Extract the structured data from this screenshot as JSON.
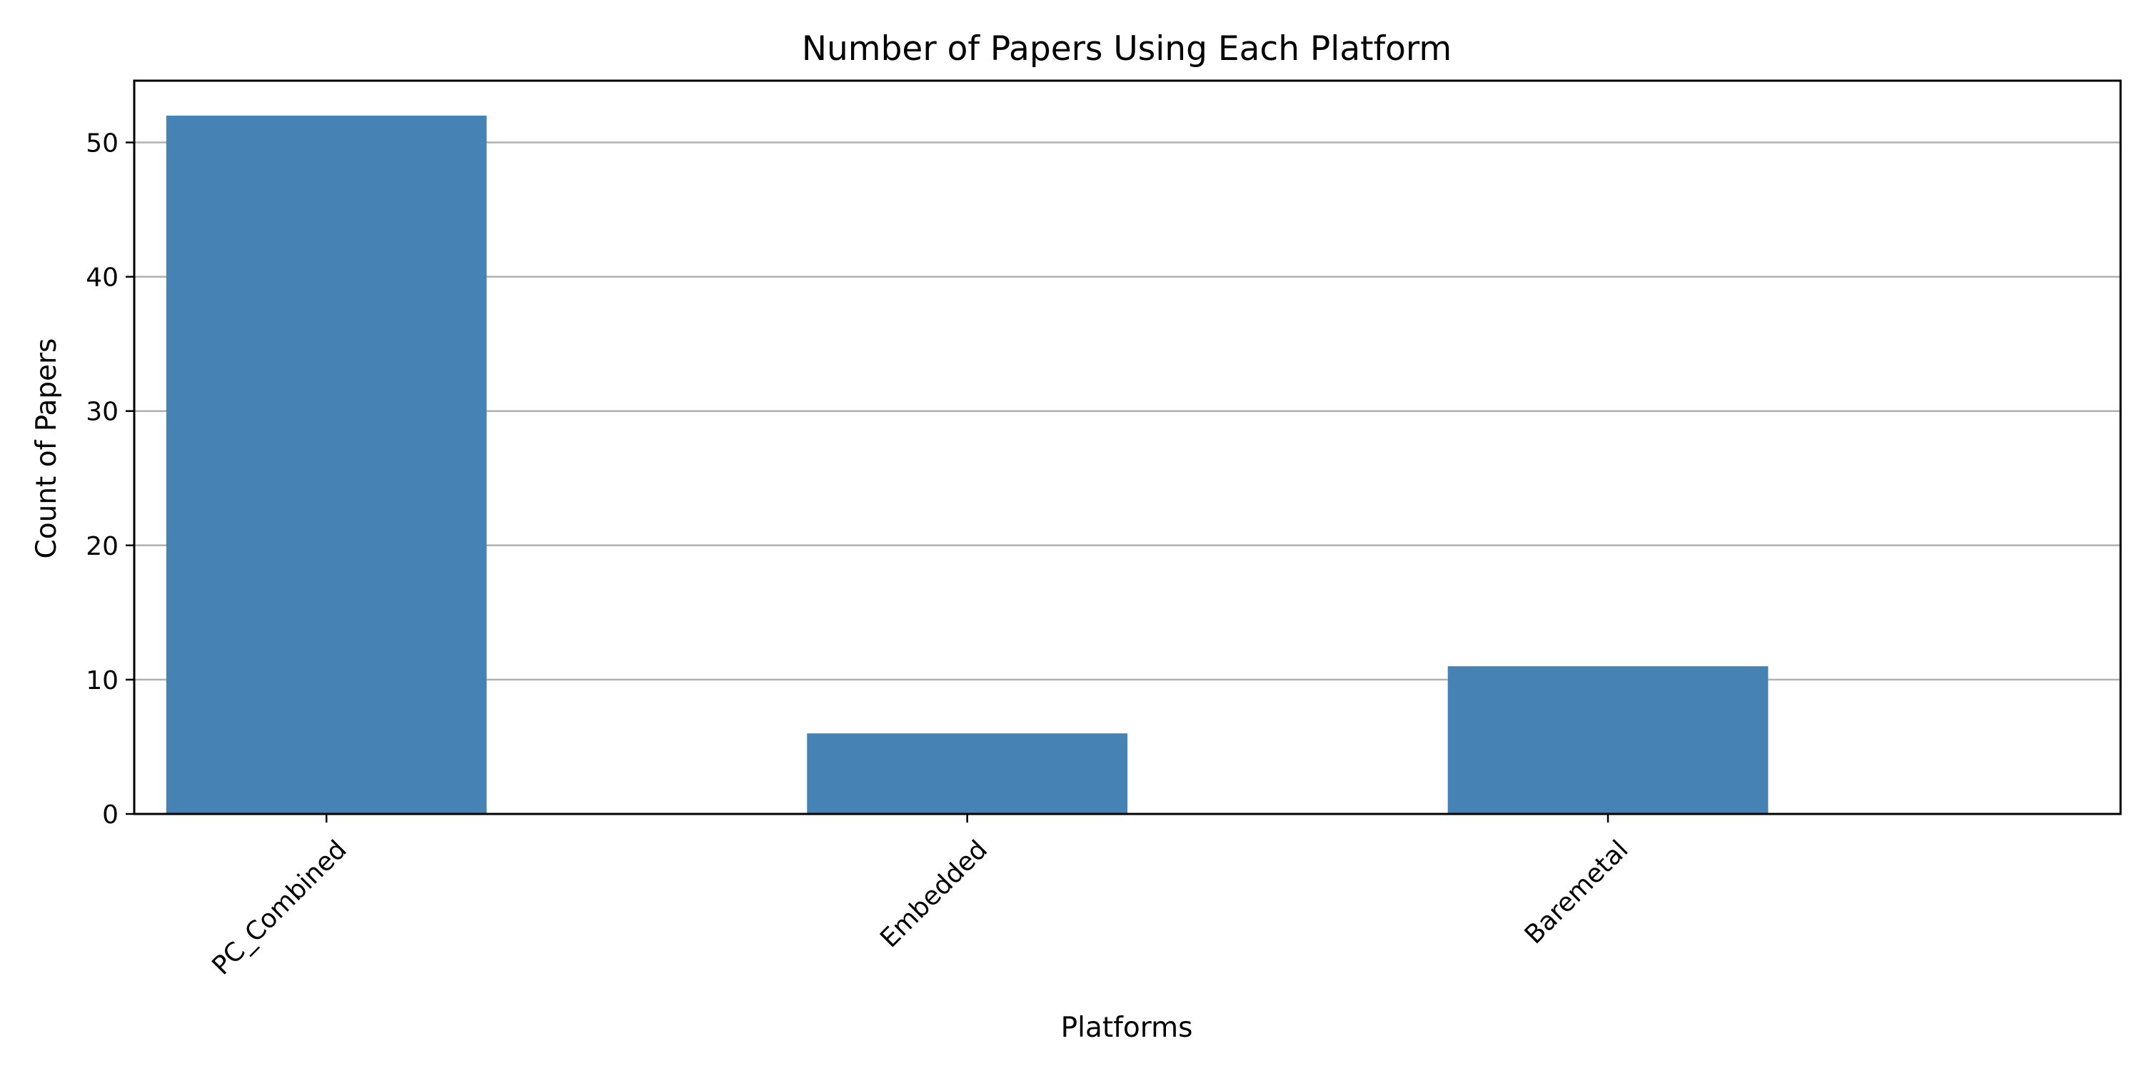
{
  "chart_data": {
    "type": "bar",
    "title": "Number of Papers Using Each Platform",
    "xlabel": "Platforms",
    "ylabel": "Count of Papers",
    "categories": [
      "PC_Combined",
      "Embedded",
      "Baremetal"
    ],
    "values": [
      52,
      6,
      11
    ],
    "ylim": [
      0,
      54.6
    ],
    "yticks": [
      0,
      10,
      20,
      30,
      40,
      50
    ],
    "grid": "y-major",
    "bar_color": "#4682b4",
    "grid_color": "#b0b0b0",
    "legend": "none"
  }
}
